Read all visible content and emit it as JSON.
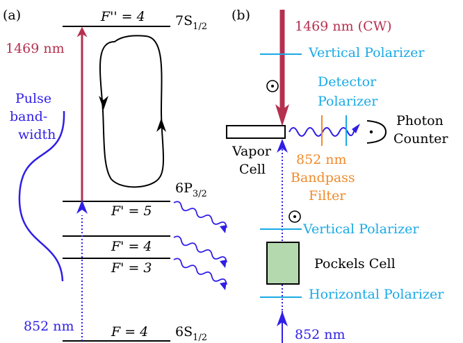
{
  "panel_a": {
    "label": "(a)",
    "level_top_F": "F'' = 4",
    "level_top_state": "7S",
    "level_top_sub": "1/2",
    "level_mid_state": "6P",
    "level_mid_sub": "3/2",
    "level_F5": "F' = 5",
    "level_F4p": "F' = 4",
    "level_F3p": "F' = 3",
    "level_ground_F": "F = 4",
    "level_ground_state": "6S",
    "level_ground_sub": "1/2",
    "laser_1469": "1469 nm",
    "laser_852": "852 nm",
    "pulse_line1": "Pulse",
    "pulse_line2": "band-",
    "pulse_line3": "width"
  },
  "panel_b": {
    "label": "(b)",
    "cw_laser": "1469 nm (CW)",
    "vertical_polarizer_top": "Vertical Polarizer",
    "detector_line1": "Detector",
    "detector_line2": "Polarizer",
    "photon_line1": "Photon",
    "photon_line2": "Counter",
    "vapor_line1": "Vapor",
    "vapor_line2": "Cell",
    "filter_line1": "852 nm",
    "filter_line2": "Bandpass",
    "filter_line3": "Filter",
    "vertical_polarizer_bottom": "Vertical Polarizer",
    "pockels": "Pockels Cell",
    "horizontal_polarizer": "Horizontal Polarizer",
    "probe_laser": "852 nm"
  },
  "colors": {
    "red": "#b5304f",
    "blue": "#2f1ee6",
    "cyan": "#19a9e6",
    "orange": "#f08a2a",
    "pockels_fill": "#b5d9ae"
  }
}
